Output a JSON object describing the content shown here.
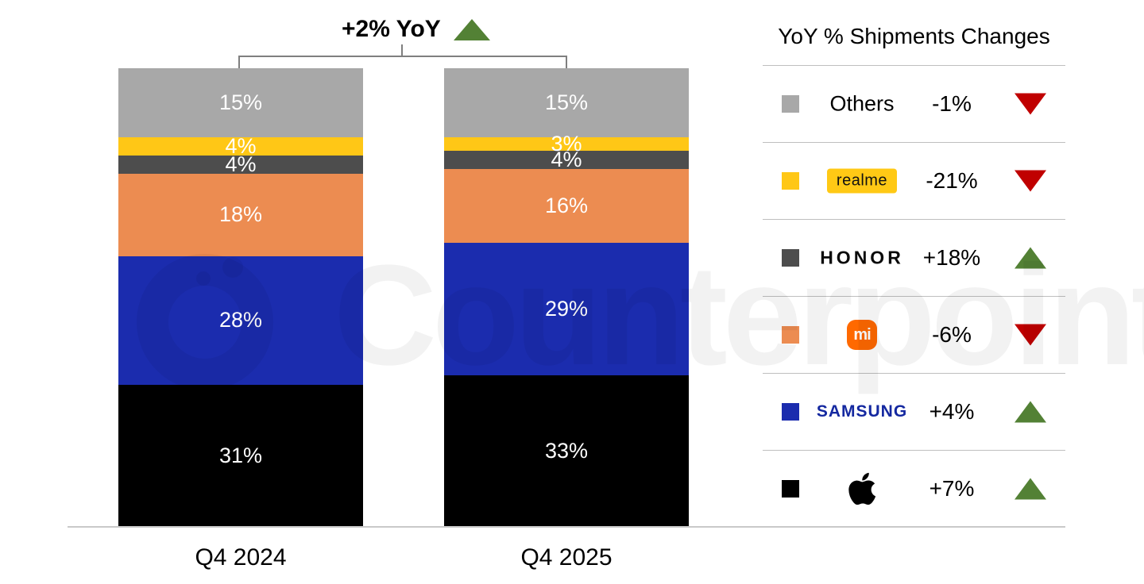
{
  "watermark": {
    "text": "Counterpoint"
  },
  "annotation": {
    "label": "+2% YoY",
    "direction": "up"
  },
  "legend": {
    "title": "YoY % Shipments Changes",
    "rows": [
      {
        "brand": "Others",
        "label": "Others",
        "change": "-1%",
        "direction": "down",
        "swatch": "#a8a8a8"
      },
      {
        "brand": "realme",
        "label": "realme",
        "change": "-21%",
        "direction": "down",
        "swatch": "#ffc716"
      },
      {
        "brand": "HONOR",
        "label": "HONOR",
        "change": "+18%",
        "direction": "up",
        "swatch": "#4d4d4d"
      },
      {
        "brand": "Xiaomi",
        "label": "mi",
        "change": "-6%",
        "direction": "down",
        "swatch": "#ec8c51"
      },
      {
        "brand": "Samsung",
        "label": "SAMSUNG",
        "change": "+4%",
        "direction": "up",
        "swatch": "#1b2cae"
      },
      {
        "brand": "Apple",
        "label": "",
        "change": "+7%",
        "direction": "up",
        "swatch": "#000000"
      }
    ]
  },
  "chart_data": {
    "type": "bar",
    "stacked": true,
    "title": "+2% YoY",
    "unit": "%",
    "ylim": [
      0,
      100
    ],
    "grid": false,
    "legend_position": "right",
    "categories": [
      "Q4 2024",
      "Q4 2025"
    ],
    "series": [
      {
        "name": "Apple",
        "color": "#000000",
        "values": [
          31,
          33
        ]
      },
      {
        "name": "Samsung",
        "color": "#1b2cae",
        "values": [
          28,
          29
        ]
      },
      {
        "name": "Xiaomi",
        "color": "#ec8c51",
        "values": [
          18,
          16
        ]
      },
      {
        "name": "HONOR",
        "color": "#4d4d4d",
        "values": [
          4,
          4
        ]
      },
      {
        "name": "realme",
        "color": "#ffc716",
        "values": [
          4,
          3
        ]
      },
      {
        "name": "Others",
        "color": "#a8a8a8",
        "values": [
          15,
          15
        ]
      }
    ]
  },
  "colors": {
    "up_green": "#538135",
    "down_red": "#c00000",
    "samsung_blue": "#1428a0",
    "xiaomi_orange": "#ff6900",
    "realme_yellow": "#ffc915",
    "axis_line": "#c9c9c9",
    "separator": "#bfbfbf",
    "bracket": "#7f7f7f"
  }
}
